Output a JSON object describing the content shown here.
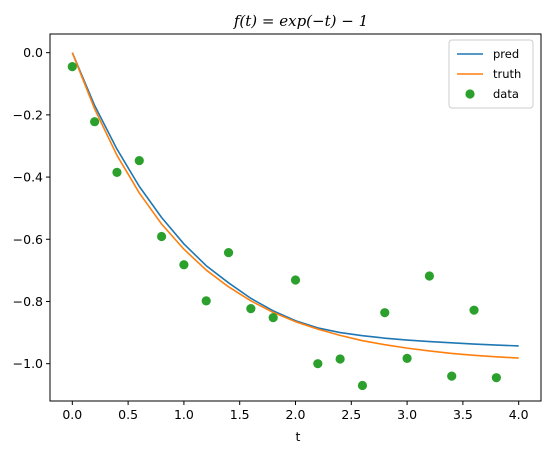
{
  "chart_data": {
    "type": "line",
    "title": "f(t) = exp(−t) − 1",
    "xlabel": "t",
    "ylabel": "",
    "xlim": [
      -0.2,
      4.2
    ],
    "ylim": [
      -1.12,
      0.06
    ],
    "xticks": [
      0.0,
      0.5,
      1.0,
      1.5,
      2.0,
      2.5,
      3.0,
      3.5,
      4.0
    ],
    "xtick_labels": [
      "0.0",
      "0.5",
      "1.0",
      "1.5",
      "2.0",
      "2.5",
      "3.0",
      "3.5",
      "4.0"
    ],
    "yticks": [
      0.0,
      -0.2,
      -0.4,
      -0.6,
      -0.8,
      -1.0
    ],
    "ytick_labels": [
      "0.0",
      "−0.2",
      "−0.4",
      "−0.6",
      "−0.8",
      "−1.0"
    ],
    "grid": false,
    "legend_position": "top-right",
    "series": [
      {
        "name": "pred",
        "kind": "line",
        "color": "#1f77b4",
        "x": [
          0,
          0.2,
          0.4,
          0.6,
          0.8,
          1.0,
          1.2,
          1.4,
          1.6,
          1.8,
          2.0,
          2.2,
          2.4,
          2.6,
          2.8,
          3.0,
          3.2,
          3.4,
          3.6,
          3.8,
          4.0
        ],
        "y": [
          0.0,
          -0.17,
          -0.31,
          -0.43,
          -0.53,
          -0.615,
          -0.685,
          -0.74,
          -0.79,
          -0.83,
          -0.862,
          -0.885,
          -0.9,
          -0.91,
          -0.918,
          -0.924,
          -0.929,
          -0.933,
          -0.937,
          -0.94,
          -0.943
        ]
      },
      {
        "name": "truth",
        "kind": "line",
        "color": "#ff7f0e",
        "x": [
          0,
          0.2,
          0.4,
          0.6,
          0.8,
          1.0,
          1.2,
          1.4,
          1.6,
          1.8,
          2.0,
          2.2,
          2.4,
          2.6,
          2.8,
          3.0,
          3.2,
          3.4,
          3.6,
          3.8,
          4.0
        ],
        "y": [
          0.0,
          -0.181,
          -0.33,
          -0.451,
          -0.551,
          -0.632,
          -0.699,
          -0.753,
          -0.798,
          -0.835,
          -0.865,
          -0.889,
          -0.909,
          -0.926,
          -0.939,
          -0.95,
          -0.959,
          -0.967,
          -0.973,
          -0.978,
          -0.982
        ]
      },
      {
        "name": "data",
        "kind": "scatter",
        "color": "#2ca02c",
        "x": [
          0.0,
          0.2,
          0.4,
          0.6,
          0.8,
          1.0,
          1.2,
          1.4,
          1.6,
          1.8,
          2.0,
          2.2,
          2.4,
          2.6,
          2.8,
          3.0,
          3.2,
          3.4,
          3.6,
          3.8
        ],
        "y": [
          -0.045,
          -0.222,
          -0.385,
          -0.347,
          -0.591,
          -0.682,
          -0.798,
          -0.643,
          -0.823,
          -0.852,
          -0.731,
          -1.0,
          -0.985,
          -1.07,
          -0.836,
          -0.983,
          -0.718,
          -1.04,
          -0.828,
          -1.045
        ]
      }
    ]
  }
}
